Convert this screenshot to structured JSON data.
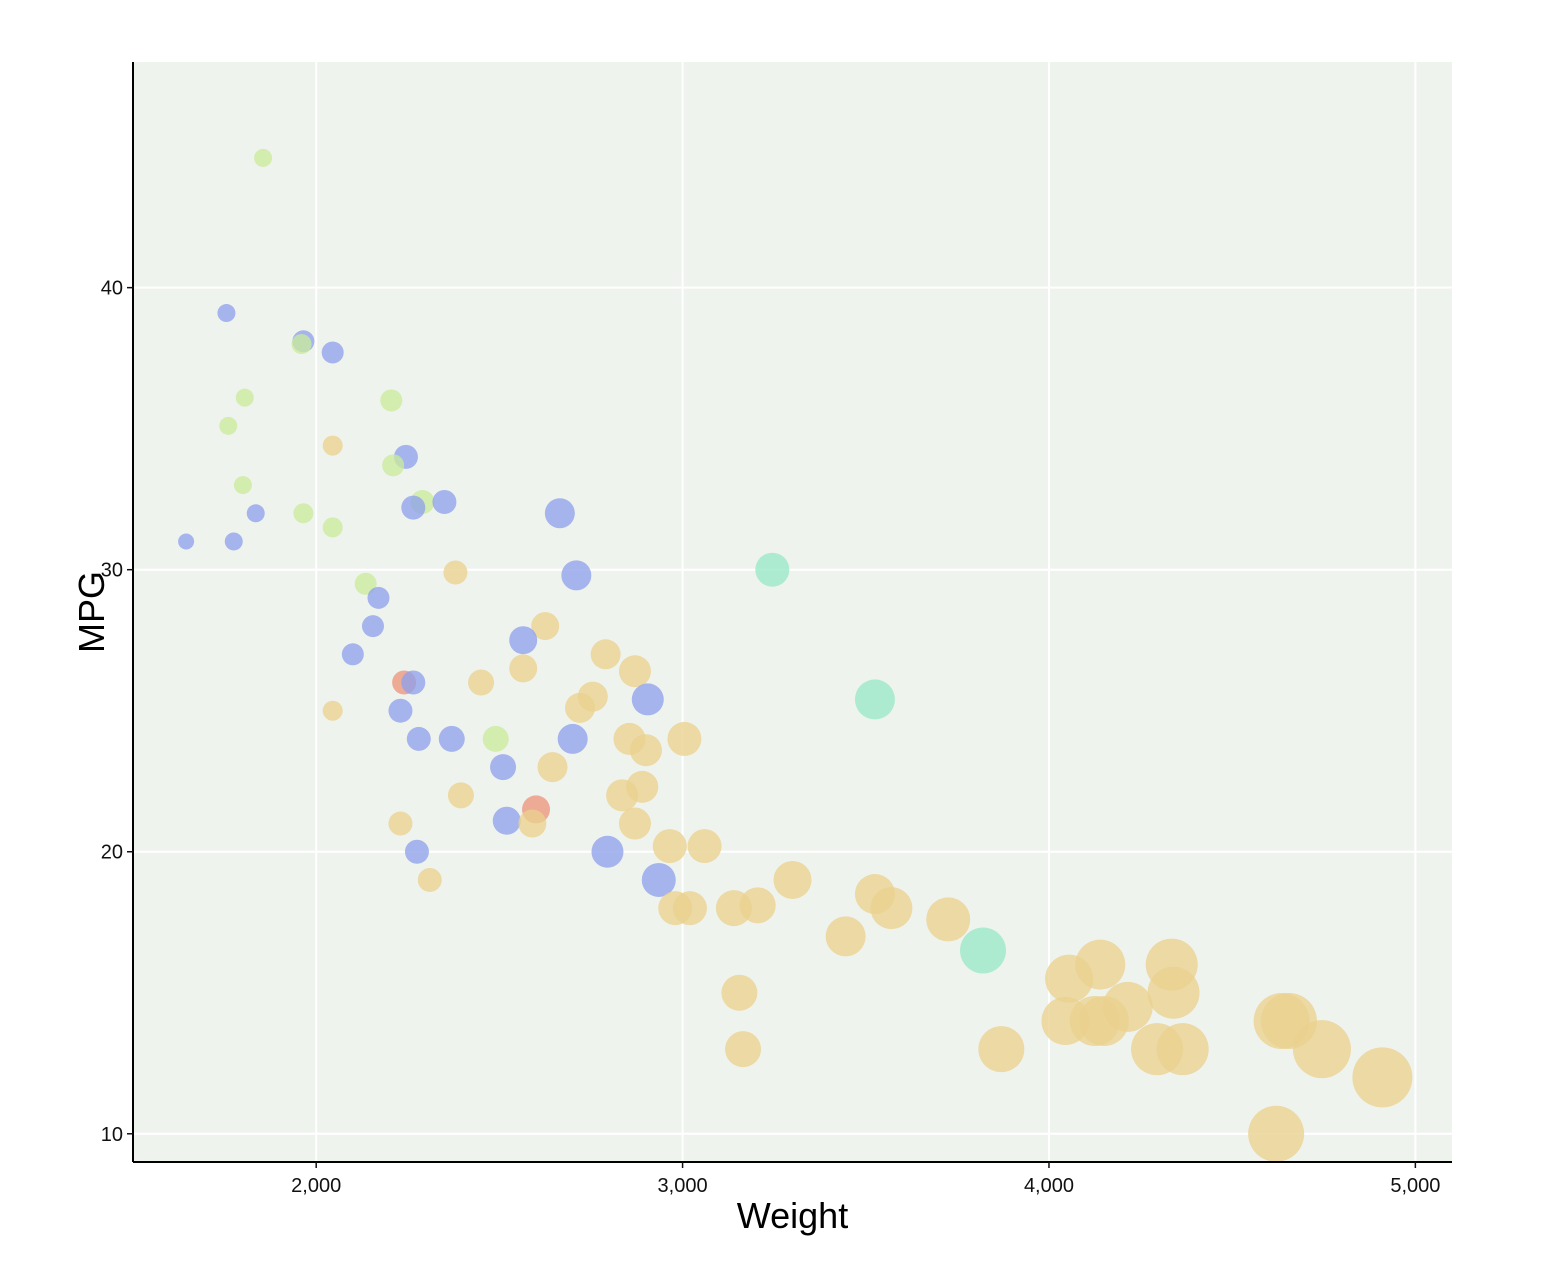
{
  "chart_data": {
    "type": "scatter",
    "xlabel": "Weight",
    "ylabel": "MPG",
    "xlim": [
      1500,
      5100
    ],
    "ylim": [
      9,
      48
    ],
    "xticks": [
      2000,
      3000,
      4000,
      5000
    ],
    "yticks": [
      10,
      20,
      30,
      40
    ],
    "xtick_labels": [
      "2,000",
      "3,000",
      "4,000",
      "5,000"
    ],
    "ytick_labels": [
      "10",
      "20",
      "30",
      "40"
    ],
    "grid": true,
    "background": "#eff3ee",
    "colors": {
      "blue": "#8fa1ec",
      "lightgreen": "#c9eb9c",
      "yellow": "#ead18e",
      "teal": "#98e8c8",
      "red": "#ec957c"
    },
    "points": [
      {
        "x": 1855,
        "y": 44.6,
        "size": 9,
        "color": "lightgreen"
      },
      {
        "x": 1755,
        "y": 39.1,
        "size": 9,
        "color": "blue"
      },
      {
        "x": 1965,
        "y": 38.1,
        "size": 11,
        "color": "blue"
      },
      {
        "x": 1960,
        "y": 38.0,
        "size": 10,
        "color": "lightgreen"
      },
      {
        "x": 2045,
        "y": 37.7,
        "size": 11,
        "color": "blue"
      },
      {
        "x": 1805,
        "y": 36.1,
        "size": 9,
        "color": "lightgreen"
      },
      {
        "x": 2205,
        "y": 36.0,
        "size": 11,
        "color": "lightgreen"
      },
      {
        "x": 1760,
        "y": 35.1,
        "size": 9,
        "color": "lightgreen"
      },
      {
        "x": 2045,
        "y": 34.4,
        "size": 10,
        "color": "yellow"
      },
      {
        "x": 2245,
        "y": 34.0,
        "size": 12,
        "color": "blue"
      },
      {
        "x": 2210,
        "y": 33.7,
        "size": 11,
        "color": "lightgreen"
      },
      {
        "x": 1800,
        "y": 33.0,
        "size": 9,
        "color": "lightgreen"
      },
      {
        "x": 2290,
        "y": 32.4,
        "size": 12,
        "color": "lightgreen"
      },
      {
        "x": 2350,
        "y": 32.4,
        "size": 12,
        "color": "blue"
      },
      {
        "x": 2265,
        "y": 32.2,
        "size": 12,
        "color": "blue"
      },
      {
        "x": 1835,
        "y": 32.0,
        "size": 9,
        "color": "blue"
      },
      {
        "x": 1965,
        "y": 32.0,
        "size": 10,
        "color": "lightgreen"
      },
      {
        "x": 2665,
        "y": 32.0,
        "size": 15,
        "color": "blue"
      },
      {
        "x": 2045,
        "y": 31.5,
        "size": 10,
        "color": "lightgreen"
      },
      {
        "x": 1645,
        "y": 31.0,
        "size": 8,
        "color": "blue"
      },
      {
        "x": 1775,
        "y": 31.0,
        "size": 9,
        "color": "blue"
      },
      {
        "x": 3245,
        "y": 30.0,
        "size": 17,
        "color": "teal"
      },
      {
        "x": 2380,
        "y": 29.9,
        "size": 12,
        "color": "yellow"
      },
      {
        "x": 2710,
        "y": 29.8,
        "size": 15,
        "color": "blue"
      },
      {
        "x": 2135,
        "y": 29.5,
        "size": 11,
        "color": "lightgreen"
      },
      {
        "x": 2170,
        "y": 29.0,
        "size": 11,
        "color": "blue"
      },
      {
        "x": 2155,
        "y": 28.0,
        "size": 11,
        "color": "blue"
      },
      {
        "x": 2625,
        "y": 28.0,
        "size": 14,
        "color": "yellow"
      },
      {
        "x": 2565,
        "y": 27.5,
        "size": 14,
        "color": "blue"
      },
      {
        "x": 2100,
        "y": 27.0,
        "size": 11,
        "color": "blue"
      },
      {
        "x": 2790,
        "y": 27.0,
        "size": 15,
        "color": "yellow"
      },
      {
        "x": 2565,
        "y": 26.5,
        "size": 14,
        "color": "yellow"
      },
      {
        "x": 2870,
        "y": 26.4,
        "size": 16,
        "color": "yellow"
      },
      {
        "x": 2240,
        "y": 26.0,
        "size": 12,
        "color": "red"
      },
      {
        "x": 2265,
        "y": 26.0,
        "size": 12,
        "color": "blue"
      },
      {
        "x": 2450,
        "y": 26.0,
        "size": 13,
        "color": "yellow"
      },
      {
        "x": 3525,
        "y": 25.4,
        "size": 20,
        "color": "teal"
      },
      {
        "x": 2905,
        "y": 25.4,
        "size": 16,
        "color": "blue"
      },
      {
        "x": 2755,
        "y": 25.5,
        "size": 15,
        "color": "yellow"
      },
      {
        "x": 2720,
        "y": 25.1,
        "size": 15,
        "color": "yellow"
      },
      {
        "x": 2045,
        "y": 25.0,
        "size": 10,
        "color": "yellow"
      },
      {
        "x": 2230,
        "y": 25.0,
        "size": 12,
        "color": "blue"
      },
      {
        "x": 2280,
        "y": 24.0,
        "size": 12,
        "color": "blue"
      },
      {
        "x": 2370,
        "y": 24.0,
        "size": 13,
        "color": "blue"
      },
      {
        "x": 2490,
        "y": 24.0,
        "size": 13,
        "color": "lightgreen"
      },
      {
        "x": 2700,
        "y": 24.0,
        "size": 15,
        "color": "blue"
      },
      {
        "x": 2855,
        "y": 24.0,
        "size": 16,
        "color": "yellow"
      },
      {
        "x": 3005,
        "y": 24.0,
        "size": 17,
        "color": "yellow"
      },
      {
        "x": 2900,
        "y": 23.6,
        "size": 16,
        "color": "yellow"
      },
      {
        "x": 2510,
        "y": 23.0,
        "size": 13,
        "color": "blue"
      },
      {
        "x": 2645,
        "y": 23.0,
        "size": 15,
        "color": "yellow"
      },
      {
        "x": 2890,
        "y": 22.3,
        "size": 16,
        "color": "yellow"
      },
      {
        "x": 2395,
        "y": 22.0,
        "size": 13,
        "color": "yellow"
      },
      {
        "x": 2835,
        "y": 22.0,
        "size": 16,
        "color": "yellow"
      },
      {
        "x": 2600,
        "y": 21.5,
        "size": 14,
        "color": "red"
      },
      {
        "x": 2230,
        "y": 21.0,
        "size": 12,
        "color": "yellow"
      },
      {
        "x": 2520,
        "y": 21.1,
        "size": 14,
        "color": "blue"
      },
      {
        "x": 2590,
        "y": 21.0,
        "size": 14,
        "color": "yellow"
      },
      {
        "x": 2870,
        "y": 21.0,
        "size": 16,
        "color": "yellow"
      },
      {
        "x": 2965,
        "y": 20.2,
        "size": 17,
        "color": "yellow"
      },
      {
        "x": 3060,
        "y": 20.2,
        "size": 17,
        "color": "yellow"
      },
      {
        "x": 2275,
        "y": 20.0,
        "size": 12,
        "color": "blue"
      },
      {
        "x": 2795,
        "y": 20.0,
        "size": 16,
        "color": "blue"
      },
      {
        "x": 2310,
        "y": 19.0,
        "size": 12,
        "color": "yellow"
      },
      {
        "x": 2935,
        "y": 19.0,
        "size": 17,
        "color": "blue"
      },
      {
        "x": 3300,
        "y": 19.0,
        "size": 19,
        "color": "yellow"
      },
      {
        "x": 3525,
        "y": 18.5,
        "size": 20,
        "color": "yellow"
      },
      {
        "x": 2980,
        "y": 18.0,
        "size": 17,
        "color": "yellow"
      },
      {
        "x": 3020,
        "y": 18.0,
        "size": 17,
        "color": "yellow"
      },
      {
        "x": 3140,
        "y": 18.0,
        "size": 18,
        "color": "yellow"
      },
      {
        "x": 3205,
        "y": 18.1,
        "size": 18,
        "color": "yellow"
      },
      {
        "x": 3570,
        "y": 18.0,
        "size": 21,
        "color": "yellow"
      },
      {
        "x": 3725,
        "y": 17.6,
        "size": 22,
        "color": "yellow"
      },
      {
        "x": 3445,
        "y": 17.0,
        "size": 20,
        "color": "yellow"
      },
      {
        "x": 3820,
        "y": 16.5,
        "size": 23,
        "color": "teal"
      },
      {
        "x": 4140,
        "y": 16.0,
        "size": 25,
        "color": "yellow"
      },
      {
        "x": 4335,
        "y": 16.0,
        "size": 26,
        "color": "yellow"
      },
      {
        "x": 4055,
        "y": 15.5,
        "size": 24,
        "color": "yellow"
      },
      {
        "x": 3155,
        "y": 15.0,
        "size": 18,
        "color": "yellow"
      },
      {
        "x": 4340,
        "y": 15.0,
        "size": 26,
        "color": "yellow"
      },
      {
        "x": 4215,
        "y": 14.5,
        "size": 25,
        "color": "yellow"
      },
      {
        "x": 4045,
        "y": 14.0,
        "size": 24,
        "color": "yellow"
      },
      {
        "x": 4125,
        "y": 14.0,
        "size": 25,
        "color": "yellow"
      },
      {
        "x": 4150,
        "y": 14.0,
        "size": 25,
        "color": "yellow"
      },
      {
        "x": 4635,
        "y": 14.0,
        "size": 28,
        "color": "yellow"
      },
      {
        "x": 4655,
        "y": 14.0,
        "size": 28,
        "color": "yellow"
      },
      {
        "x": 3165,
        "y": 13.0,
        "size": 18,
        "color": "yellow"
      },
      {
        "x": 3870,
        "y": 13.0,
        "size": 23,
        "color": "yellow"
      },
      {
        "x": 4295,
        "y": 13.0,
        "size": 26,
        "color": "yellow"
      },
      {
        "x": 4365,
        "y": 13.0,
        "size": 26,
        "color": "yellow"
      },
      {
        "x": 4745,
        "y": 13.0,
        "size": 29,
        "color": "yellow"
      },
      {
        "x": 4910,
        "y": 12.0,
        "size": 30,
        "color": "yellow"
      },
      {
        "x": 4620,
        "y": 10.0,
        "size": 28,
        "color": "yellow"
      }
    ]
  }
}
